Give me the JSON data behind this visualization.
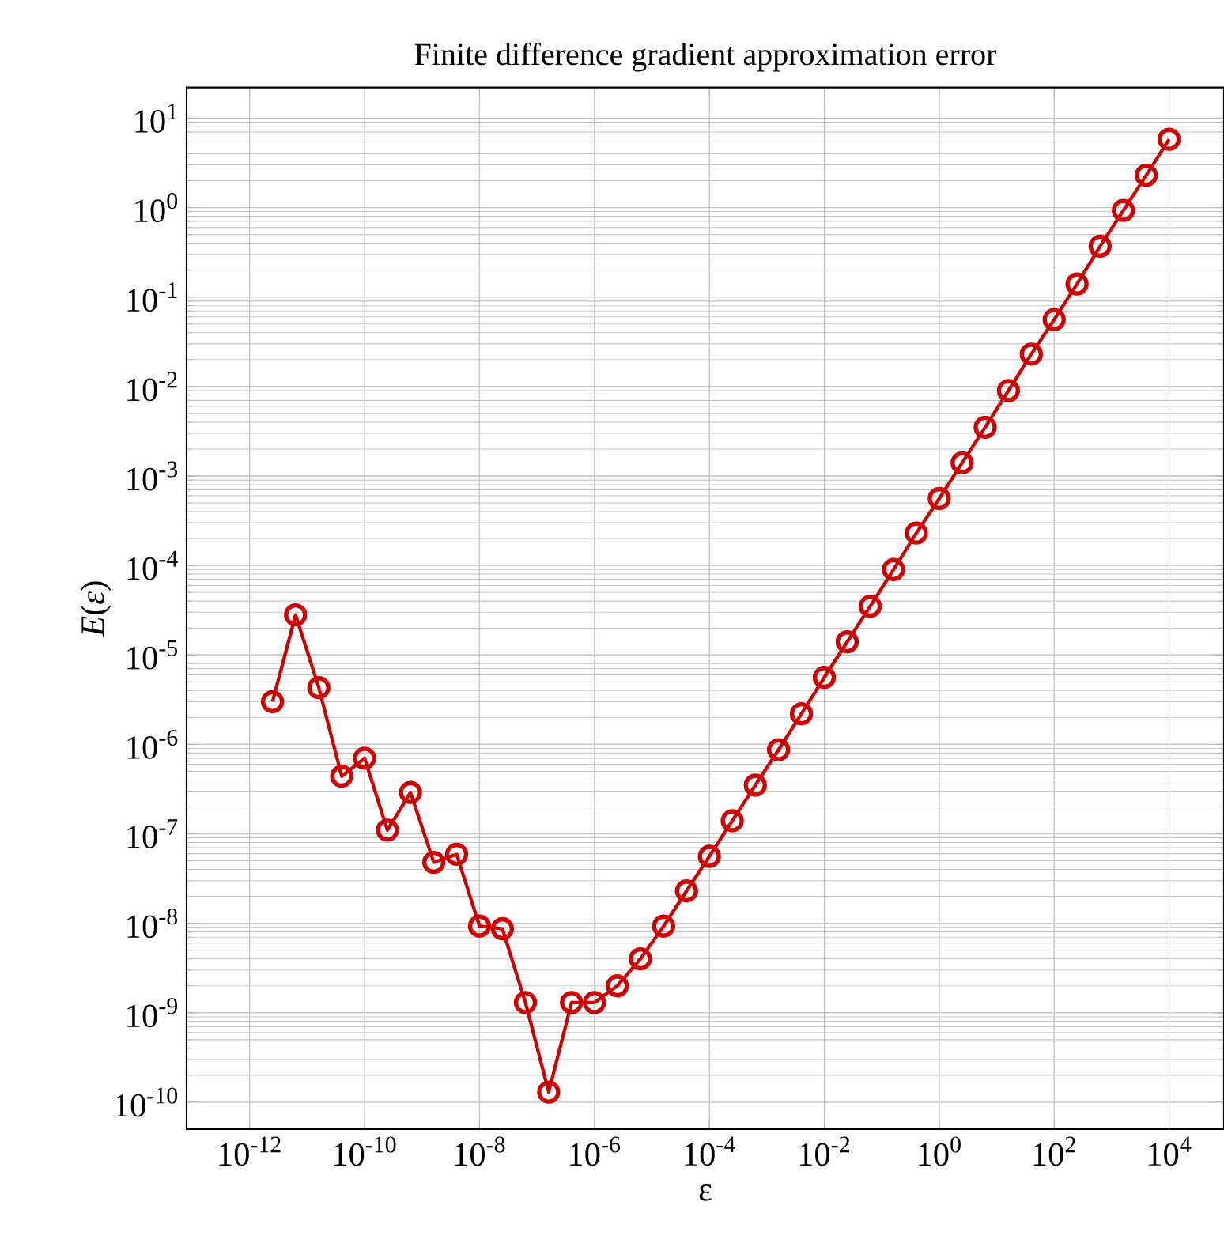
{
  "chart_data": {
    "type": "line",
    "title": "Finite difference gradient approximation error",
    "xlabel": "ε",
    "ylabel": "*E*(*ε*)",
    "x": [
      2.5e-12,
      6.3e-12,
      1.6e-11,
      4e-11,
      1e-10,
      2.5e-10,
      6.3e-10,
      1.6e-09,
      4e-09,
      1e-08,
      2.5e-08,
      6.3e-08,
      1.6e-07,
      4e-07,
      1e-06,
      2.5e-06,
      6.3e-06,
      1.6e-05,
      4e-05,
      0.0001,
      0.00025,
      0.00063,
      0.0016,
      0.004,
      0.01,
      0.025,
      0.063,
      0.16,
      0.4,
      1,
      2.5,
      6.3,
      16,
      40,
      100,
      250,
      630,
      1600,
      4000,
      10000
    ],
    "series": [
      {
        "color": "#cc0000",
        "values": [
          3e-06,
          2.8e-05,
          4.3e-06,
          4.4e-07,
          7e-07,
          1.1e-07,
          2.9e-07,
          4.8e-08,
          5.9e-08,
          9.3e-09,
          8.7e-09,
          1.3e-09,
          1.3e-10,
          1.3e-09,
          1.3e-09,
          2e-09,
          4e-09,
          9.3e-09,
          2.3e-08,
          5.6e-08,
          1.4e-07,
          3.5e-07,
          8.7e-07,
          2.2e-06,
          5.6e-06,
          1.4e-05,
          3.5e-05,
          9e-05,
          0.00023,
          0.00056,
          0.0014,
          0.0035,
          0.009,
          0.023,
          0.056,
          0.14,
          0.37,
          0.93,
          2.3,
          5.8
        ]
      }
    ],
    "log": "xy",
    "marker": "circle",
    "line_style": "solid",
    "grid": true,
    "xlim": [
      8e-14,
      90000.0
    ],
    "ylim": [
      5e-11,
      22
    ],
    "xticks": [
      {
        "value": 1e-12,
        "label": "10$^{-12}$"
      },
      {
        "value": 1e-10,
        "label": "10$^{-10}$"
      },
      {
        "value": 1e-08,
        "label": "10$^{-8}$"
      },
      {
        "value": 1e-06,
        "label": "10$^{-6}$"
      },
      {
        "value": 0.0001,
        "label": "10$^{-4}$"
      },
      {
        "value": 0.01,
        "label": "10$^{-2}$"
      },
      {
        "value": 1,
        "label": "10$^{0}$"
      },
      {
        "value": 100,
        "label": "10$^{2}$"
      },
      {
        "value": 10000,
        "label": "10$^{4}$"
      }
    ],
    "yticks": [
      {
        "value": 1e-10,
        "label": "10$^{-10}$"
      },
      {
        "value": 1e-09,
        "label": "10$^{-9}$"
      },
      {
        "value": 1e-08,
        "label": "10$^{-8}$"
      },
      {
        "value": 1e-07,
        "label": "10$^{-7}$"
      },
      {
        "value": 1e-06,
        "label": "10$^{-6}$"
      },
      {
        "value": 1e-05,
        "label": "10$^{-5}$"
      },
      {
        "value": 0.0001,
        "label": "10$^{-4}$"
      },
      {
        "value": 0.001,
        "label": "10$^{-3}$"
      },
      {
        "value": 0.01,
        "label": "10$^{-2}$"
      },
      {
        "value": 0.1,
        "label": "10$^{-1}$"
      },
      {
        "value": 1,
        "label": "10$^{0}$"
      },
      {
        "value": 10,
        "label": "10$^{1}$"
      }
    ]
  }
}
